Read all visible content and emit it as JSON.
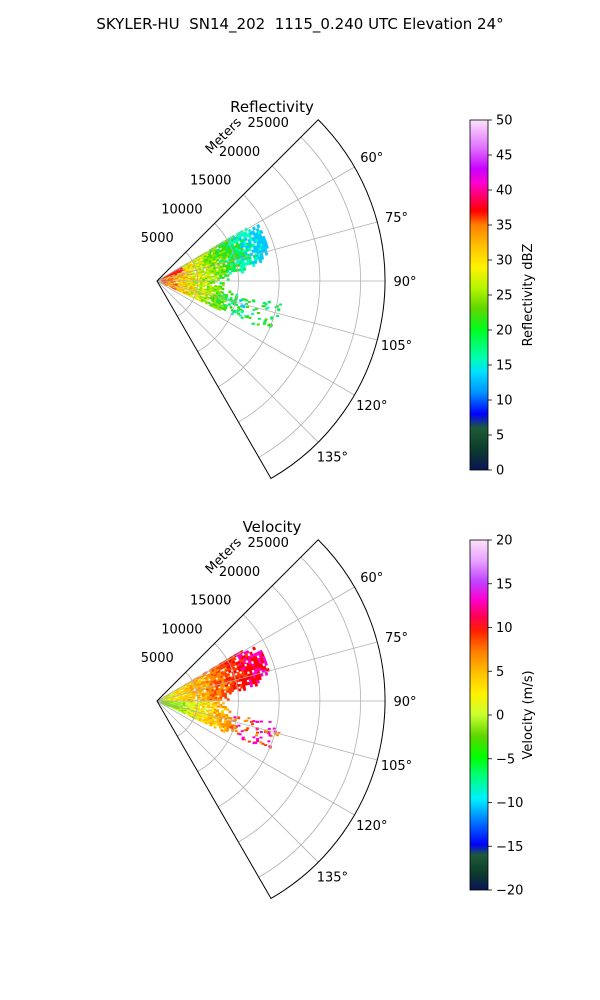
{
  "figure": {
    "suptitle": "SKYLER-HU  SN14_202  1115_0.240 UTC Elevation 24°"
  },
  "chart_data": [
    {
      "type": "heatmap",
      "projection": "polar-sector",
      "title": "Reflectivity",
      "radial_axis_label": "Meters",
      "radial_ticks": [
        5000,
        10000,
        15000,
        20000,
        25000
      ],
      "radial_range": [
        0,
        28000
      ],
      "angular_range_deg": [
        45,
        150
      ],
      "angular_ticks": [
        "60°",
        "75°",
        "90°",
        "105°",
        "120°",
        "135°"
      ],
      "grid": true,
      "colorbar": {
        "label": "Reflectivity dBZ",
        "min": 0,
        "max": 50,
        "ticks": [
          "0",
          "5",
          "10",
          "15",
          "20",
          "25",
          "30",
          "35",
          "40",
          "45",
          "50"
        ]
      },
      "echo_region": {
        "azimuth_deg": [
          60,
          115
        ],
        "range_m": [
          0,
          14000
        ],
        "peak_value": 38
      }
    },
    {
      "type": "heatmap",
      "projection": "polar-sector",
      "title": "Velocity",
      "radial_axis_label": "Meters",
      "radial_ticks": [
        5000,
        10000,
        15000,
        20000,
        25000
      ],
      "radial_range": [
        0,
        28000
      ],
      "angular_range_deg": [
        45,
        150
      ],
      "angular_ticks": [
        "60°",
        "75°",
        "90°",
        "105°",
        "120°",
        "135°"
      ],
      "grid": true,
      "colorbar": {
        "label": "Velocity (m/s)",
        "min": -20,
        "max": 20,
        "ticks": [
          "−20",
          "−15",
          "−10",
          "−5",
          "0",
          "5",
          "10",
          "15",
          "20"
        ]
      },
      "echo_region": {
        "azimuth_deg": [
          60,
          115
        ],
        "range_m": [
          0,
          14000
        ],
        "peak_value": 14
      }
    }
  ]
}
